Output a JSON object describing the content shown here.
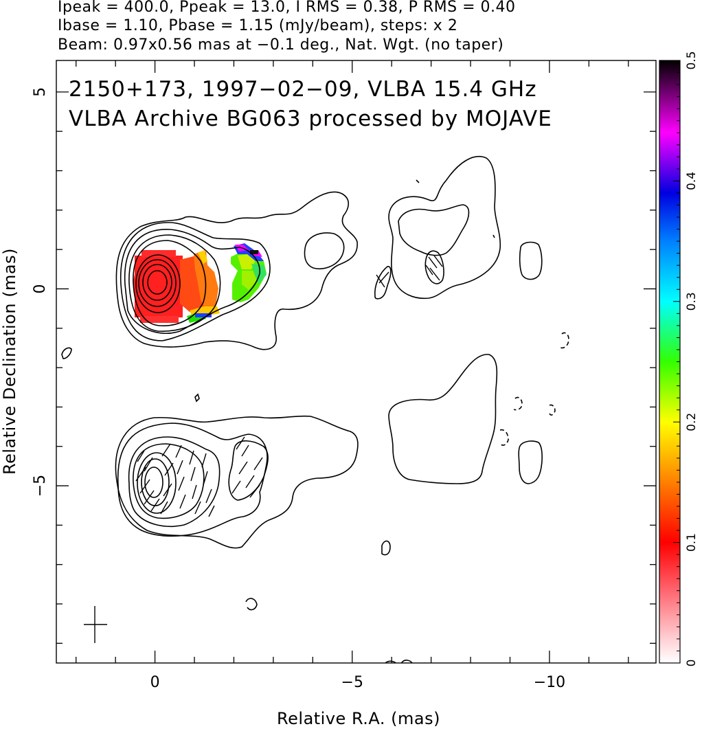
{
  "header": {
    "line1": "Ipeak = 400.0, Ppeak = 13.0, I RMS = 0.38, P RMS = 0.40",
    "line2": "Ibase = 1.10, Pbase = 1.15 (mJy/beam), steps: x 2",
    "line3": "Beam: 0.97x0.56 mas at −0.1 deg., Nat. Wgt. (no taper)"
  },
  "annotation": {
    "line1": "2150+173, 1997−02−09, VLBA 15.4 GHz",
    "line2": "VLBA Archive BG063 processed by MOJAVE"
  },
  "chart_data": {
    "type": "heatmap",
    "description_of_panels": [
      "total intensity contours with fractional polarization color (upper)",
      "total intensity contours with EVPA sticks (lower)"
    ],
    "xlabel": "Relative R.A. (mas)",
    "ylabel": "Relative Declination (mas)",
    "xlim": [
      2.5,
      -12.7
    ],
    "ylim": [
      -9.5,
      5.8
    ],
    "xticks": [
      0,
      -5,
      -10
    ],
    "xtick_labels": [
      "0",
      "−5",
      "−10"
    ],
    "yticks": [
      5,
      0,
      -5
    ],
    "ytick_labels": [
      "5",
      "0",
      "−5"
    ],
    "colorbar": {
      "range": [
        0,
        0.5
      ],
      "ticks": [
        "0",
        "0.1",
        "0.2",
        "0.3",
        "0.4",
        "0.5"
      ],
      "colors": [
        "#ffffff",
        "#ff0000",
        "#ffff00",
        "#00ff00",
        "#00ffff",
        "#0000ff",
        "#ff00ff",
        "#000000"
      ]
    },
    "Ipeak_mJy_beam": 400.0,
    "Ppeak_mJy_beam": 13.0,
    "I_RMS": 0.38,
    "P_RMS": 0.4,
    "Ibase": 1.1,
    "Pbase": 1.15,
    "contour_step_factor": 2,
    "beam_major_mas": 0.97,
    "beam_minor_mas": 0.56,
    "beam_pa_deg": -0.1,
    "grid": false
  }
}
